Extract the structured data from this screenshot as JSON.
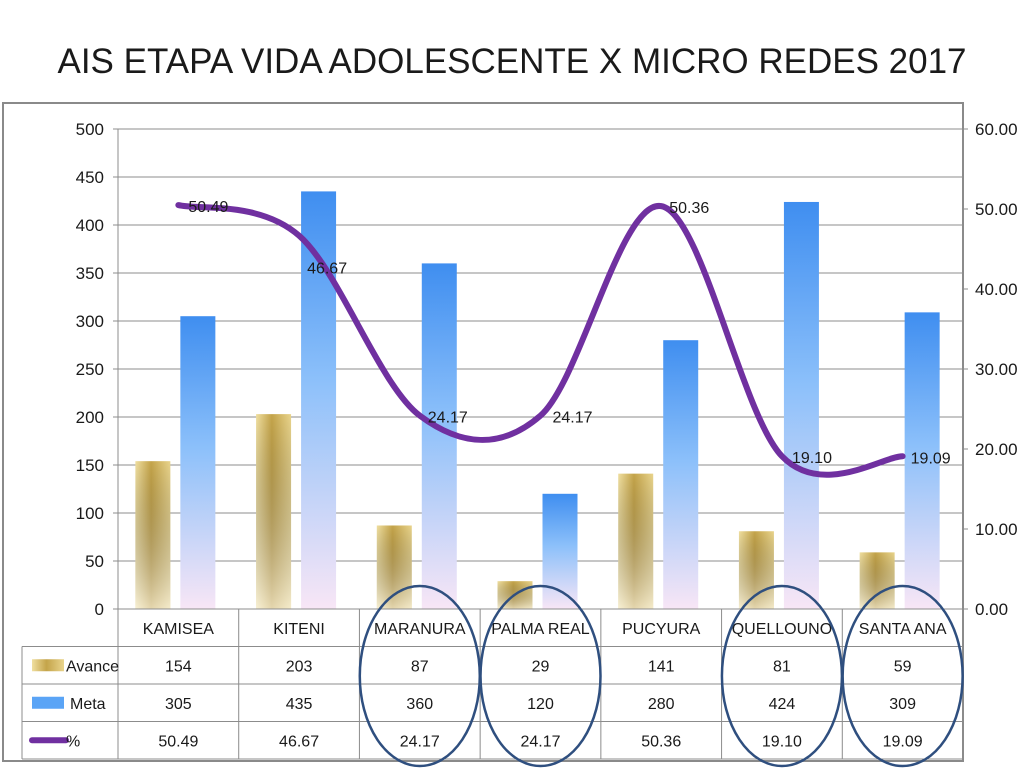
{
  "title": "AIS ETAPA VIDA ADOLESCENTE X MICRO REDES 2017",
  "chart_data": {
    "type": "bar",
    "title": "AIS ETAPA VIDA ADOLESCENTE X MICRO REDES 2017",
    "categories": [
      "KAMISEA",
      "KITENI",
      "MARANURA",
      "PALMA REAL",
      "PUCYURA",
      "QUELLOUNO",
      "SANTA ANA"
    ],
    "series": [
      {
        "name": "Avance",
        "type": "bar",
        "axis": "left",
        "color": "#c9a94a",
        "values": [
          154,
          203,
          87,
          29,
          141,
          81,
          59
        ]
      },
      {
        "name": "Meta",
        "type": "bar",
        "axis": "left",
        "color": "#4f9cf5",
        "values": [
          305,
          435,
          360,
          120,
          280,
          424,
          309
        ]
      },
      {
        "name": "%",
        "type": "line",
        "axis": "right",
        "color": "#7030a0",
        "values": [
          50.49,
          46.67,
          24.17,
          24.17,
          50.36,
          19.1,
          19.09
        ]
      }
    ],
    "y_left": {
      "min": 0,
      "max": 500,
      "ticks": [
        "0",
        "50",
        "100",
        "150",
        "200",
        "250",
        "300",
        "350",
        "400",
        "450",
        "500"
      ]
    },
    "y_right": {
      "min": 0,
      "max": 60,
      "ticks": [
        "0.00",
        "10.00",
        "20.00",
        "30.00",
        "40.00",
        "50.00",
        "60.00"
      ]
    },
    "table": {
      "avance": [
        "154",
        "203",
        "87",
        "29",
        "141",
        "81",
        "59"
      ],
      "meta": [
        "305",
        "435",
        "360",
        "120",
        "280",
        "424",
        "309"
      ],
      "pct": [
        "50.49",
        "46.67",
        "24.17",
        "24.17",
        "50.36",
        "19.10",
        "19.09"
      ]
    },
    "highlighted_categories": [
      "MARANURA",
      "PALMA REAL",
      "QUELLOUNO",
      "SANTA ANA"
    ],
    "grid": true,
    "legend": "data-table"
  }
}
